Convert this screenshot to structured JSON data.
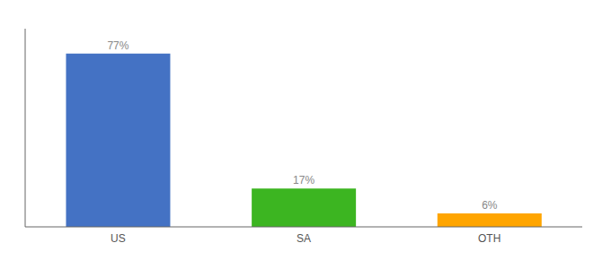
{
  "chart_data": {
    "type": "bar",
    "categories": [
      "US",
      "SA",
      "OTH"
    ],
    "values": [
      77,
      17,
      6
    ],
    "value_labels": [
      "77%",
      "17%",
      "6%"
    ],
    "colors": [
      "#4472c4",
      "#3cb521",
      "#ffa500"
    ],
    "ylim": [
      0,
      88
    ],
    "data_labels": true,
    "tick_labels": "x",
    "grid": false
  }
}
